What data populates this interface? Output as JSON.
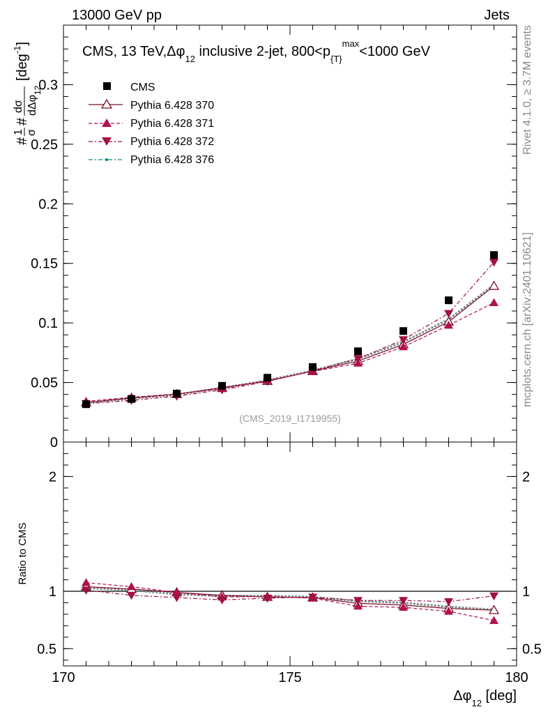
{
  "header": {
    "left": "13000 GeV pp",
    "right": "Jets"
  },
  "side_labels": {
    "rivet": "Rivet 4.1.0, ≥ 3.7M events",
    "mcplots": "mcplots.cern.ch [arXiv:2401.10621]"
  },
  "chart_data": [
    {
      "type": "scatter",
      "panel": "main",
      "title": "CMS, 13 TeV,Δφ",
      "title_sub": "12",
      "title_rest": " inclusive 2-jet, 800<p",
      "title_sub2": "{T}",
      "title_sup": "max",
      "title_end": "<1000 GeV",
      "ylabel": "#1/σ # dσ/dΔφ_12 [deg⁻¹]",
      "ylabel_parts": {
        "one": "1",
        "sigma": "σ",
        "hash1": "#",
        "hash2": "#",
        "dsigma": "dσ",
        "ddphi": "dΔφ",
        "sub": "12",
        "unit": "[deg",
        "unit_sup": "-1",
        "unit_close": "]"
      },
      "xlim": [
        170,
        180
      ],
      "ylim": [
        0,
        0.35
      ],
      "yticks": [
        0,
        0.05,
        0.1,
        0.15,
        0.2,
        0.25,
        0.3
      ],
      "ytick_labels": [
        "0",
        "0.05",
        "0.1",
        "0.15",
        "0.2",
        "0.25",
        "0.3"
      ],
      "watermark": "(CMS_2019_I1719955)",
      "x": [
        170.5,
        171.5,
        172.5,
        173.5,
        174.5,
        175.5,
        176.5,
        177.5,
        178.5,
        179.5
      ],
      "series": [
        {
          "name": "CMS",
          "color": "#000000",
          "marker": "square",
          "line": "none",
          "values": [
            0.0318,
            0.0362,
            0.0407,
            0.0472,
            0.054,
            0.063,
            0.0762,
            0.0932,
            0.119,
            0.157
          ]
        },
        {
          "name": "Pythia 6.428 370",
          "color": "#7a1020",
          "marker": "triangle-open",
          "line": "solid",
          "values": [
            0.0332,
            0.037,
            0.0402,
            0.0456,
            0.0512,
            0.0595,
            0.068,
            0.082,
            0.101,
            0.131
          ]
        },
        {
          "name": "Pythia 6.428 371",
          "color": "#b0104e",
          "marker": "triangle-up",
          "line": "dashed",
          "values": [
            0.0342,
            0.0376,
            0.0404,
            0.0448,
            0.0517,
            0.0592,
            0.0662,
            0.08,
            0.098,
            0.117
          ]
        },
        {
          "name": "Pythia 6.428 372",
          "color": "#a01040",
          "marker": "triangle-down",
          "line": "dashdot",
          "values": [
            0.0322,
            0.035,
            0.0385,
            0.0438,
            0.0508,
            0.0598,
            0.07,
            0.086,
            0.108,
            0.151
          ]
        },
        {
          "name": "Pythia 6.428 376",
          "color": "#00907a",
          "marker": "dot",
          "line": "dashdot",
          "values": [
            0.0328,
            0.0366,
            0.0398,
            0.0454,
            0.0518,
            0.06,
            0.0698,
            0.084,
            0.103,
            0.132
          ]
        }
      ],
      "legend_position": "top-left"
    },
    {
      "type": "line",
      "panel": "ratio",
      "ylabel": "Ratio to CMS",
      "xlabel": "Δφ",
      "xlabel_sub": "12",
      "xlabel_unit": " [deg]",
      "xlim": [
        170,
        180
      ],
      "ylim": [
        0.35,
        2.3
      ],
      "yticks": [
        0.5,
        1,
        2
      ],
      "ytick_labels": [
        "0.5",
        "1",
        "2"
      ],
      "xticks": [
        170,
        175,
        180
      ],
      "xtick_labels": [
        "170",
        "175",
        "180"
      ],
      "x": [
        170.5,
        171.5,
        172.5,
        173.5,
        174.5,
        175.5,
        176.5,
        177.5,
        178.5,
        179.5
      ],
      "series": [
        {
          "name": "Pythia 6.428 370",
          "values": [
            1.04,
            1.02,
            0.99,
            0.965,
            0.95,
            0.945,
            0.895,
            0.88,
            0.85,
            0.835
          ]
        },
        {
          "name": "Pythia 6.428 371",
          "values": [
            1.075,
            1.04,
            0.99,
            0.95,
            0.955,
            0.94,
            0.87,
            0.86,
            0.825,
            0.745
          ]
        },
        {
          "name": "Pythia 6.428 372",
          "values": [
            1.01,
            0.965,
            0.945,
            0.925,
            0.94,
            0.95,
            0.92,
            0.92,
            0.91,
            0.96
          ]
        },
        {
          "name": "Pythia 6.428 376",
          "values": [
            1.03,
            1.01,
            0.975,
            0.96,
            0.96,
            0.95,
            0.915,
            0.9,
            0.865,
            0.84
          ]
        }
      ]
    }
  ]
}
